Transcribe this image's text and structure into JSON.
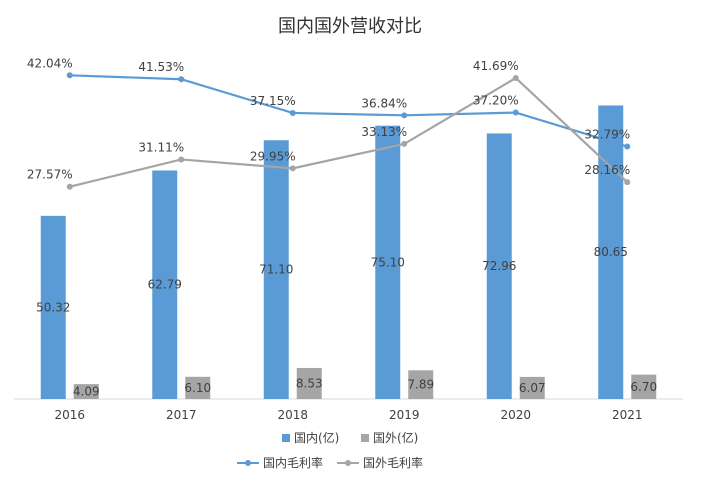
{
  "chart_data": {
    "type": "bar",
    "title": "国内国外营收对比",
    "categories": [
      "2016",
      "2017",
      "2018",
      "2019",
      "2020",
      "2021"
    ],
    "series": [
      {
        "name": "国内(亿)",
        "kind": "bar",
        "color": "#5b9bd5",
        "values": [
          50.32,
          62.79,
          71.1,
          75.1,
          72.96,
          80.65
        ],
        "labels": [
          "50.32",
          "62.79",
          "71.10",
          "75.10",
          "72.96",
          "80.65"
        ]
      },
      {
        "name": "国外(亿)",
        "kind": "bar",
        "color": "#a5a5a5",
        "values": [
          4.09,
          6.1,
          8.53,
          7.89,
          6.07,
          6.7
        ],
        "labels": [
          "4.09",
          "6.10",
          "8.53",
          "7.89",
          "6.07",
          "6.70"
        ]
      },
      {
        "name": "国内毛利率",
        "kind": "line",
        "color": "#5b9bd5",
        "values": [
          42.04,
          41.53,
          37.15,
          36.84,
          37.2,
          32.79
        ],
        "labels": [
          "42.04%",
          "41.53%",
          "37.15%",
          "36.84%",
          "37.20%",
          "32.79%"
        ]
      },
      {
        "name": "国外毛利率",
        "kind": "line",
        "color": "#a5a5a5",
        "values": [
          27.57,
          31.11,
          29.95,
          33.13,
          41.69,
          28.16
        ],
        "labels": [
          "27.57%",
          "31.11%",
          "29.95%",
          "33.13%",
          "41.69%",
          "28.16%"
        ]
      }
    ],
    "bar_ylim": [
      0,
      85
    ],
    "line_ylim": [
      0,
      47
    ],
    "legend_position": "bottom",
    "grid": false
  }
}
